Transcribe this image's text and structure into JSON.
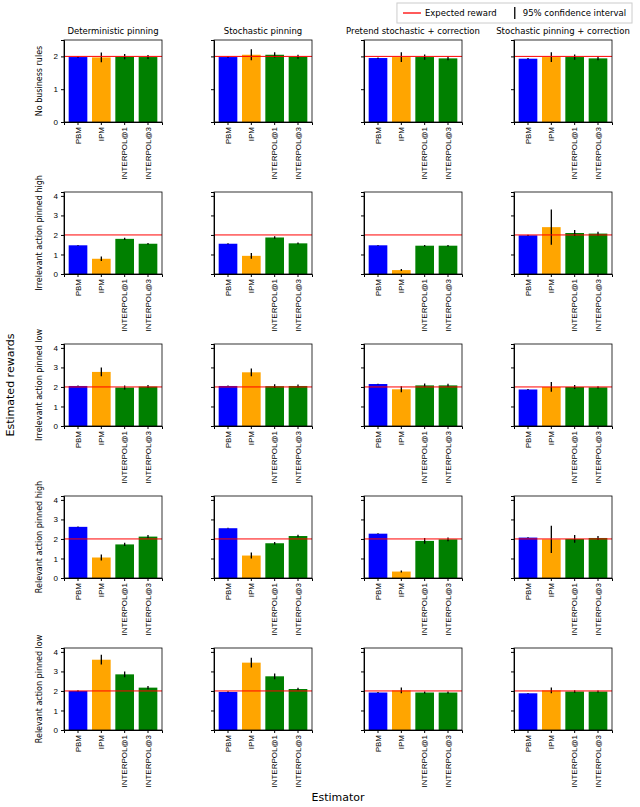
{
  "figure": {
    "x_label": "Estimator",
    "y_label": "Estimated rewards",
    "legend": "upper right",
    "legend_entries": [
      {
        "name": "Expected reward",
        "color": "#ff0000",
        "marker": "line"
      },
      {
        "name": "95% confidence interval",
        "color": "#000000",
        "marker": "vline"
      }
    ]
  },
  "chart_data": [
    {
      "type": "bar",
      "title": "Deterministic pinning",
      "y_label": "No business rules",
      "categories": [
        "PBM",
        "IPM",
        "INTERPOL@1",
        "INTERPOL@3"
      ],
      "values": [
        1.98,
        1.97,
        1.99,
        1.98
      ],
      "errors": [
        0.02,
        0.15,
        0.08,
        0.06
      ],
      "colors": [
        "#0000ff",
        "#ffa500",
        "#008000",
        "#008000"
      ],
      "expected_reward": 2,
      "ylim": [
        0,
        2.5
      ],
      "yticks": [
        0,
        1,
        2
      ]
    },
    {
      "type": "bar",
      "title": "Stochastic pinning",
      "categories": [
        "PBM",
        "IPM",
        "INTERPOL@1",
        "INTERPOL@3"
      ],
      "values": [
        1.98,
        2.05,
        2.05,
        1.99
      ],
      "errors": [
        0.02,
        0.17,
        0.08,
        0.06
      ],
      "colors": [
        "#0000ff",
        "#ffa500",
        "#008000",
        "#008000"
      ],
      "expected_reward": 2,
      "ylim": [
        0,
        2.5
      ],
      "yticks": [
        0,
        1,
        2
      ],
      "tick_labels": "x"
    },
    {
      "type": "bar",
      "title": "Pretend stochastic + correction",
      "categories": [
        "PBM",
        "IPM",
        "INTERPOL@1",
        "INTERPOL@3"
      ],
      "values": [
        1.95,
        1.98,
        1.98,
        1.94
      ],
      "errors": [
        0.02,
        0.15,
        0.08,
        0.06
      ],
      "colors": [
        "#0000ff",
        "#ffa500",
        "#008000",
        "#008000"
      ],
      "expected_reward": 2,
      "ylim": [
        0,
        2.5
      ],
      "yticks": [
        0,
        1,
        2
      ],
      "tick_labels": "x"
    },
    {
      "type": "bar",
      "title": "Stochastic pinning + correction",
      "categories": [
        "PBM",
        "IPM",
        "INTERPOL@1",
        "INTERPOL@3"
      ],
      "values": [
        1.93,
        1.98,
        1.98,
        1.94
      ],
      "errors": [
        0.02,
        0.15,
        0.08,
        0.06
      ],
      "colors": [
        "#0000ff",
        "#ffa500",
        "#008000",
        "#008000"
      ],
      "expected_reward": 2,
      "ylim": [
        0,
        2.5
      ],
      "yticks": [
        0,
        1,
        2
      ],
      "tick_labels": "x"
    },
    {
      "type": "bar",
      "y_label": "Irrelevant action pinned high",
      "categories": [
        "PBM",
        "IPM",
        "INTERPOL@1",
        "INTERPOL@3"
      ],
      "values": [
        1.47,
        0.78,
        1.8,
        1.55
      ],
      "errors": [
        0.02,
        0.12,
        0.06,
        0.04
      ],
      "colors": [
        "#0000ff",
        "#ffa500",
        "#008000",
        "#008000"
      ],
      "expected_reward": 2,
      "ylim": [
        0,
        4.2
      ],
      "yticks": [
        0,
        1,
        2,
        3,
        4
      ]
    },
    {
      "type": "bar",
      "categories": [
        "PBM",
        "IPM",
        "INTERPOL@1",
        "INTERPOL@3"
      ],
      "values": [
        1.55,
        0.93,
        1.87,
        1.57
      ],
      "errors": [
        0.02,
        0.15,
        0.06,
        0.04
      ],
      "colors": [
        "#0000ff",
        "#ffa500",
        "#008000",
        "#008000"
      ],
      "expected_reward": 2,
      "ylim": [
        0,
        4.2
      ],
      "yticks": [
        0,
        1,
        2,
        3,
        4
      ],
      "tick_labels": "x"
    },
    {
      "type": "bar",
      "categories": [
        "PBM",
        "IPM",
        "INTERPOL@1",
        "INTERPOL@3"
      ],
      "values": [
        1.47,
        0.2,
        1.45,
        1.45
      ],
      "errors": [
        0.02,
        0.05,
        0.04,
        0.04
      ],
      "colors": [
        "#0000ff",
        "#ffa500",
        "#008000",
        "#008000"
      ],
      "expected_reward": 2,
      "ylim": [
        0,
        4.2
      ],
      "yticks": [
        0,
        1,
        2,
        3,
        4
      ],
      "tick_labels": "x"
    },
    {
      "type": "bar",
      "categories": [
        "PBM",
        "IPM",
        "INTERPOL@1",
        "INTERPOL@3"
      ],
      "values": [
        1.98,
        2.4,
        2.1,
        2.07
      ],
      "errors": [
        0.03,
        0.9,
        0.15,
        0.1
      ],
      "colors": [
        "#0000ff",
        "#ffa500",
        "#008000",
        "#008000"
      ],
      "expected_reward": 2,
      "ylim": [
        0,
        4.2
      ],
      "yticks": [
        0,
        1,
        2,
        3,
        4
      ],
      "tick_labels": "x"
    },
    {
      "type": "bar",
      "y_label": "Irrelevant action pinned low",
      "categories": [
        "PBM",
        "IPM",
        "INTERPOL@1",
        "INTERPOL@3"
      ],
      "values": [
        2.05,
        2.77,
        1.97,
        2.02
      ],
      "errors": [
        0.02,
        0.22,
        0.1,
        0.08
      ],
      "colors": [
        "#0000ff",
        "#ffa500",
        "#008000",
        "#008000"
      ],
      "expected_reward": 2,
      "ylim": [
        0,
        4.2
      ],
      "yticks": [
        0,
        1,
        2,
        3,
        4
      ]
    },
    {
      "type": "bar",
      "categories": [
        "PBM",
        "IPM",
        "INTERPOL@1",
        "INTERPOL@3"
      ],
      "values": [
        2.05,
        2.75,
        2.04,
        2.05
      ],
      "errors": [
        0.02,
        0.2,
        0.1,
        0.08
      ],
      "colors": [
        "#0000ff",
        "#ffa500",
        "#008000",
        "#008000"
      ],
      "expected_reward": 2,
      "ylim": [
        0,
        4.2
      ],
      "yticks": [
        0,
        1,
        2,
        3,
        4
      ],
      "tick_labels": "x"
    },
    {
      "type": "bar",
      "categories": [
        "PBM",
        "IPM",
        "INTERPOL@1",
        "INTERPOL@3"
      ],
      "values": [
        2.15,
        1.88,
        2.08,
        2.08
      ],
      "errors": [
        0.02,
        0.15,
        0.1,
        0.08
      ],
      "colors": [
        "#0000ff",
        "#ffa500",
        "#008000",
        "#008000"
      ],
      "expected_reward": 2,
      "ylim": [
        0,
        4.2
      ],
      "yticks": [
        0,
        1,
        2,
        3,
        4
      ],
      "tick_labels": "x"
    },
    {
      "type": "bar",
      "categories": [
        "PBM",
        "IPM",
        "INTERPOL@1",
        "INTERPOL@3"
      ],
      "values": [
        1.87,
        2.0,
        2.0,
        1.98
      ],
      "errors": [
        0.02,
        0.25,
        0.1,
        0.06
      ],
      "colors": [
        "#0000ff",
        "#ffa500",
        "#008000",
        "#008000"
      ],
      "expected_reward": 2,
      "ylim": [
        0,
        4.2
      ],
      "yticks": [
        0,
        1,
        2,
        3,
        4
      ],
      "tick_labels": "x"
    },
    {
      "type": "bar",
      "y_label": "Relevant action pinned high",
      "categories": [
        "PBM",
        "IPM",
        "INTERPOL@1",
        "INTERPOL@3"
      ],
      "values": [
        2.62,
        1.05,
        1.72,
        2.12
      ],
      "errors": [
        0.02,
        0.15,
        0.08,
        0.08
      ],
      "colors": [
        "#0000ff",
        "#ffa500",
        "#008000",
        "#008000"
      ],
      "expected_reward": 2,
      "ylim": [
        0,
        4.2
      ],
      "yticks": [
        0,
        1,
        2,
        3,
        4
      ]
    },
    {
      "type": "bar",
      "categories": [
        "PBM",
        "IPM",
        "INTERPOL@1",
        "INTERPOL@3"
      ],
      "values": [
        2.55,
        1.15,
        1.78,
        2.15
      ],
      "errors": [
        0.02,
        0.15,
        0.06,
        0.06
      ],
      "colors": [
        "#0000ff",
        "#ffa500",
        "#008000",
        "#008000"
      ],
      "expected_reward": 2,
      "ylim": [
        0,
        4.2
      ],
      "yticks": [
        0,
        1,
        2,
        3,
        4
      ],
      "tick_labels": "x"
    },
    {
      "type": "bar",
      "categories": [
        "PBM",
        "IPM",
        "INTERPOL@1",
        "INTERPOL@3"
      ],
      "values": [
        2.27,
        0.33,
        1.9,
        1.98
      ],
      "errors": [
        0.02,
        0.05,
        0.15,
        0.1
      ],
      "colors": [
        "#0000ff",
        "#ffa500",
        "#008000",
        "#008000"
      ],
      "expected_reward": 2,
      "ylim": [
        0,
        4.2
      ],
      "yticks": [
        0,
        1,
        2,
        3,
        4
      ],
      "tick_labels": "x"
    },
    {
      "type": "bar",
      "categories": [
        "PBM",
        "IPM",
        "INTERPOL@1",
        "INTERPOL@3"
      ],
      "values": [
        2.07,
        1.98,
        2.0,
        2.05
      ],
      "errors": [
        0.02,
        0.7,
        0.2,
        0.1
      ],
      "colors": [
        "#0000ff",
        "#ffa500",
        "#008000",
        "#008000"
      ],
      "expected_reward": 2,
      "ylim": [
        0,
        4.2
      ],
      "yticks": [
        0,
        1,
        2,
        3,
        4
      ],
      "tick_labels": "x"
    },
    {
      "type": "bar",
      "y_label": "Relevant action pinned low",
      "categories": [
        "PBM",
        "IPM",
        "INTERPOL@1",
        "INTERPOL@3"
      ],
      "values": [
        2.0,
        3.6,
        2.85,
        2.17
      ],
      "errors": [
        0.03,
        0.25,
        0.15,
        0.08
      ],
      "colors": [
        "#0000ff",
        "#ffa500",
        "#008000",
        "#008000"
      ],
      "expected_reward": 2,
      "ylim": [
        0,
        4.2
      ],
      "yticks": [
        0,
        1,
        2,
        3,
        4
      ]
    },
    {
      "type": "bar",
      "categories": [
        "PBM",
        "IPM",
        "INTERPOL@1",
        "INTERPOL@3"
      ],
      "values": [
        1.95,
        3.45,
        2.75,
        2.1
      ],
      "errors": [
        0.03,
        0.25,
        0.15,
        0.06
      ],
      "colors": [
        "#0000ff",
        "#ffa500",
        "#008000",
        "#008000"
      ],
      "expected_reward": 2,
      "ylim": [
        0,
        4.2
      ],
      "yticks": [
        0,
        1,
        2,
        3,
        4
      ],
      "tick_labels": "x"
    },
    {
      "type": "bar",
      "categories": [
        "PBM",
        "IPM",
        "INTERPOL@1",
        "INTERPOL@3"
      ],
      "values": [
        1.92,
        2.03,
        1.92,
        1.92
      ],
      "errors": [
        0.02,
        0.15,
        0.05,
        0.05
      ],
      "colors": [
        "#0000ff",
        "#ffa500",
        "#008000",
        "#008000"
      ],
      "expected_reward": 2,
      "ylim": [
        0,
        4.2
      ],
      "yticks": [
        0,
        1,
        2,
        3,
        4
      ],
      "tick_labels": "x"
    },
    {
      "type": "bar",
      "categories": [
        "PBM",
        "IPM",
        "INTERPOL@1",
        "INTERPOL@3"
      ],
      "values": [
        1.88,
        2.03,
        1.97,
        1.97
      ],
      "errors": [
        0.02,
        0.15,
        0.06,
        0.05
      ],
      "colors": [
        "#0000ff",
        "#ffa500",
        "#008000",
        "#008000"
      ],
      "expected_reward": 2,
      "ylim": [
        0,
        4.2
      ],
      "yticks": [
        0,
        1,
        2,
        3,
        4
      ],
      "tick_labels": "x"
    }
  ]
}
